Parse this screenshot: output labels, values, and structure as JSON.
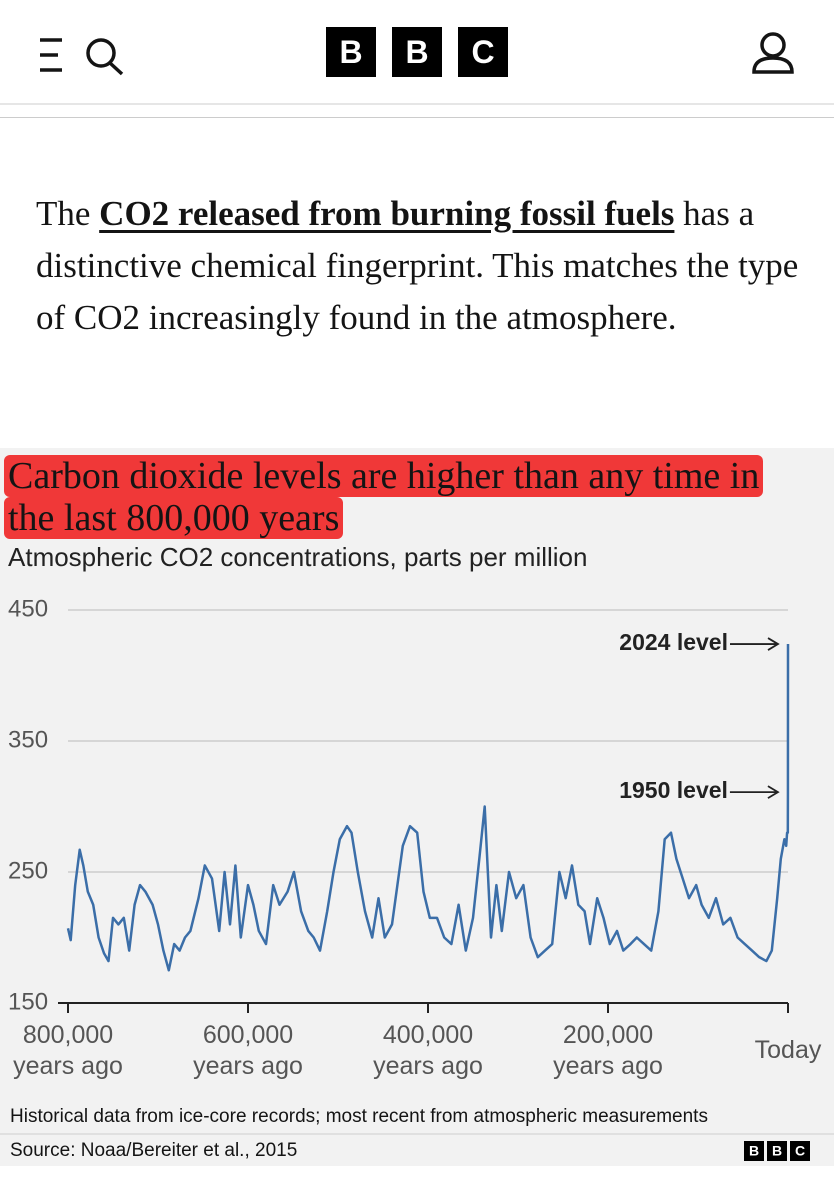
{
  "header": {
    "logo": [
      "B",
      "B",
      "C"
    ]
  },
  "article": {
    "before": "The ",
    "link": "CO2 released from burning fossil fuels",
    "after": " has a distinctive chemical fingerprint. This matches the type of CO2 increasingly found in the atmosphere."
  },
  "chart_data": {
    "type": "line",
    "title": "Carbon dioxide levels are higher than any time in the last 800,000 years",
    "subtitle": "Atmospheric CO2 concentrations, parts per million",
    "x": [
      -800000,
      -797000,
      -792000,
      -787000,
      -783000,
      -778000,
      -772000,
      -766000,
      -760000,
      -755000,
      -750000,
      -744000,
      -738000,
      -732000,
      -726000,
      -720000,
      -714000,
      -706000,
      -700000,
      -694000,
      -688000,
      -682000,
      -676000,
      -670000,
      -664000,
      -655000,
      -648000,
      -640000,
      -632000,
      -626000,
      -620000,
      -614000,
      -608000,
      -600000,
      -594000,
      -588000,
      -580000,
      -572000,
      -565000,
      -556000,
      -549000,
      -541000,
      -533000,
      -527000,
      -520000,
      -512000,
      -505000,
      -498000,
      -490000,
      -485000,
      -478000,
      -470000,
      -462000,
      -455000,
      -448000,
      -440000,
      -434000,
      -428000,
      -420000,
      -412000,
      -405000,
      -398000,
      -390000,
      -382000,
      -374000,
      -366000,
      -358000,
      -350000,
      -343000,
      -337000,
      -330000,
      -324000,
      -318000,
      -310000,
      -302000,
      -294000,
      -286000,
      -278000,
      -270000,
      -262000,
      -254000,
      -247000,
      -240000,
      -233000,
      -226000,
      -220000,
      -212000,
      -205000,
      -198000,
      -190000,
      -183000,
      -175000,
      -168000,
      -160000,
      -152000,
      -144000,
      -137000,
      -130000,
      -124000,
      -117000,
      -110000,
      -102000,
      -96000,
      -88000,
      -80000,
      -72000,
      -64000,
      -56000,
      -48000,
      -40000,
      -32000,
      -24000,
      -18000,
      -12000,
      -8000,
      -4000,
      -2000,
      -1000,
      -200,
      -74,
      0
    ],
    "series": [
      {
        "color": "#3b6ea8",
        "values": [
          207,
          198,
          240,
          267,
          255,
          235,
          225,
          200,
          188,
          182,
          215,
          210,
          215,
          190,
          225,
          240,
          235,
          225,
          210,
          190,
          175,
          195,
          190,
          200,
          205,
          230,
          255,
          245,
          205,
          250,
          210,
          255,
          200,
          240,
          225,
          205,
          195,
          240,
          225,
          235,
          250,
          220,
          205,
          200,
          190,
          220,
          250,
          275,
          285,
          280,
          250,
          220,
          200,
          230,
          200,
          210,
          240,
          270,
          285,
          280,
          235,
          215,
          215,
          200,
          195,
          225,
          190,
          215,
          260,
          300,
          200,
          240,
          205,
          250,
          230,
          240,
          200,
          185,
          190,
          195,
          250,
          230,
          255,
          225,
          220,
          195,
          230,
          215,
          195,
          205,
          190,
          195,
          200,
          195,
          190,
          220,
          275,
          280,
          260,
          245,
          230,
          240,
          225,
          215,
          230,
          210,
          215,
          200,
          195,
          190,
          185,
          182,
          190,
          230,
          260,
          275,
          270,
          280,
          280,
          311,
          424
        ]
      }
    ],
    "xlim": [
      -800000,
      0
    ],
    "xticks": [
      {
        "value": -800000,
        "label": "800,000\nyears ago"
      },
      {
        "value": -600000,
        "label": "600,000\nyears ago"
      },
      {
        "value": -400000,
        "label": "400,000\nyears ago"
      },
      {
        "value": -200000,
        "label": "200,000\nyears ago"
      },
      {
        "value": 0,
        "label": "Today"
      }
    ],
    "ylim": [
      150,
      450
    ],
    "yticks": [
      150,
      250,
      350,
      450
    ],
    "grid": true,
    "annotations": [
      {
        "text": "2024 level",
        "x": 0,
        "y": 424
      },
      {
        "text": "1950 level",
        "x": -74,
        "y": 311
      }
    ],
    "note": "Historical data from ice-core records; most recent from atmospheric measurements",
    "source": "Source: Noaa/Bereiter et al., 2015"
  }
}
